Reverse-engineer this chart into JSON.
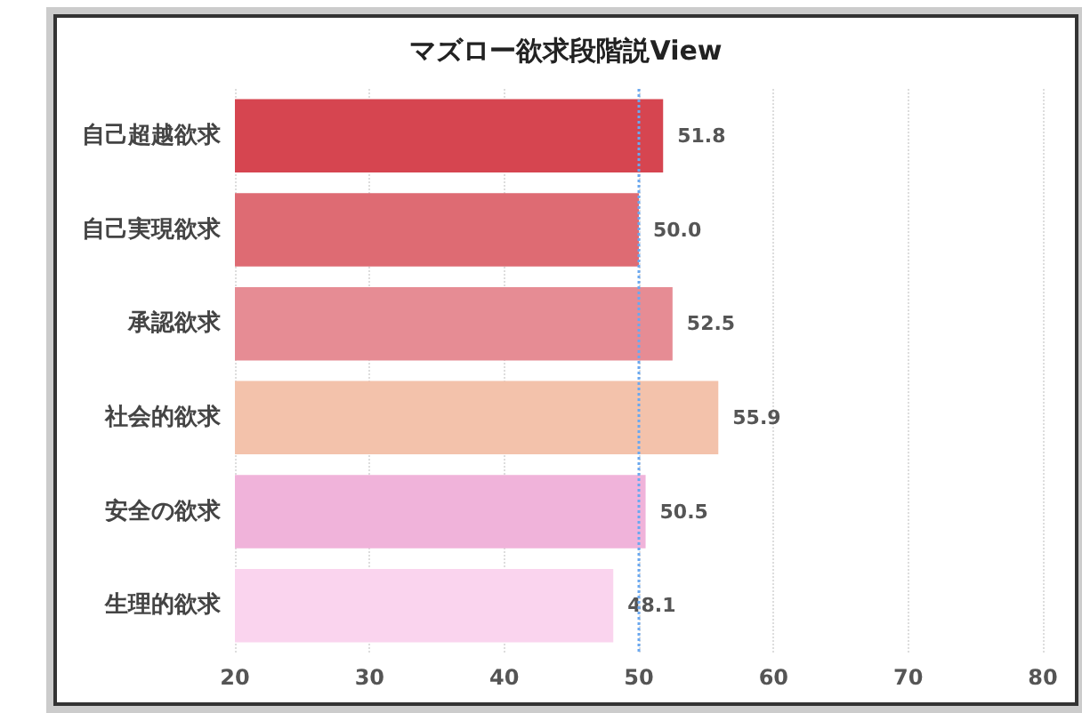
{
  "chart_data": {
    "type": "bar",
    "orientation": "horizontal",
    "title": "マズロー欲求段階説View",
    "categories": [
      "自己超越欲求",
      "自己実現欲求",
      "承認欲求",
      "社会的欲求",
      "安全の欲求",
      "生理的欲求"
    ],
    "values": [
      51.8,
      50.0,
      52.5,
      55.9,
      50.5,
      48.1
    ],
    "colors": [
      "#d64550",
      "#de6b73",
      "#e68c94",
      "#f3c2ab",
      "#f0b3da",
      "#fad4ee"
    ],
    "value_labels": [
      "51.8",
      "50.0",
      "52.5",
      "55.9",
      "50.5",
      "48.1"
    ],
    "xlim": [
      20,
      80
    ],
    "xticks": [
      20,
      30,
      40,
      50,
      60,
      70,
      80
    ],
    "grid": "x",
    "ref_lines": [
      {
        "axis": "x",
        "value": 50,
        "color": "#6aa8f0",
        "line_style": "dotted"
      }
    ]
  }
}
